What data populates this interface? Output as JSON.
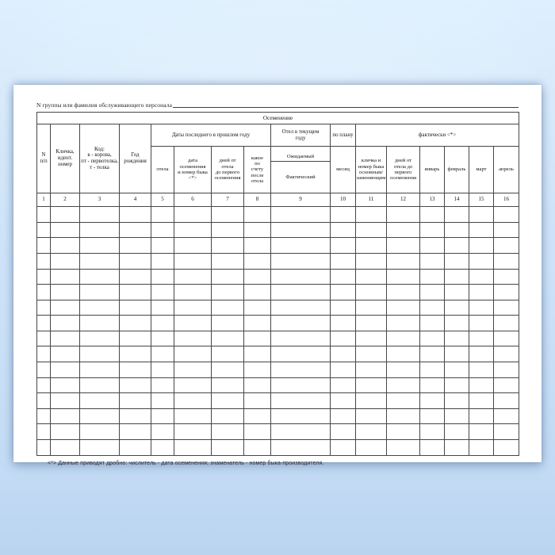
{
  "colors": {
    "background_blue": "#cfe3f7",
    "paper": "#ffffff",
    "grid_line": "#464646",
    "text": "#141414"
  },
  "page": {
    "title_line": "N группы или фамилия обслуживающего персонала",
    "footnote": "<*> Данные приводят дробно: числитель - дата осеменения; знаменатель - номер быка-производителя."
  },
  "table": {
    "main_header": "Осеменение",
    "groups": {
      "last_year_dates": "Даты последнего  в прошлом году",
      "current_year_calving": "Отел в текущем\nгоду",
      "by_plan": "по  плану",
      "actual": "фактически <*>"
    },
    "columns": {
      "num": "N\nп/п",
      "name": "Кличка,\nидент.\nномер",
      "code": "Код:\nк - корова,\nпт - первотелка,\nт - телка",
      "birth_year": "Год\nрождения",
      "calving": "отела",
      "insemination_date": "дата\nосеменения\nи номер быка\n<*>",
      "days_from_calving": "дней от\nотела\nдо первого\nосеменения",
      "which_after_calving": "какое\nпо\nсчету\nпосле\nотела",
      "expected": "Ожидаемый",
      "actual_calving": "Фактический",
      "month": "месяц",
      "bull_name": "кличка  и\nномер быка\nосновным/\nзаменяющим",
      "days_to_first_insem": "дней от\nотела до\nпервого\nосеменения",
      "january": "январь",
      "february": "февраль",
      "march": "март",
      "april": "апрель"
    },
    "column_numbers": [
      "1",
      "2",
      "3",
      "4",
      "5",
      "6",
      "7",
      "8",
      "9",
      "10",
      "11",
      "12",
      "13",
      "14",
      "15",
      "16"
    ],
    "body_row_count": 16
  }
}
